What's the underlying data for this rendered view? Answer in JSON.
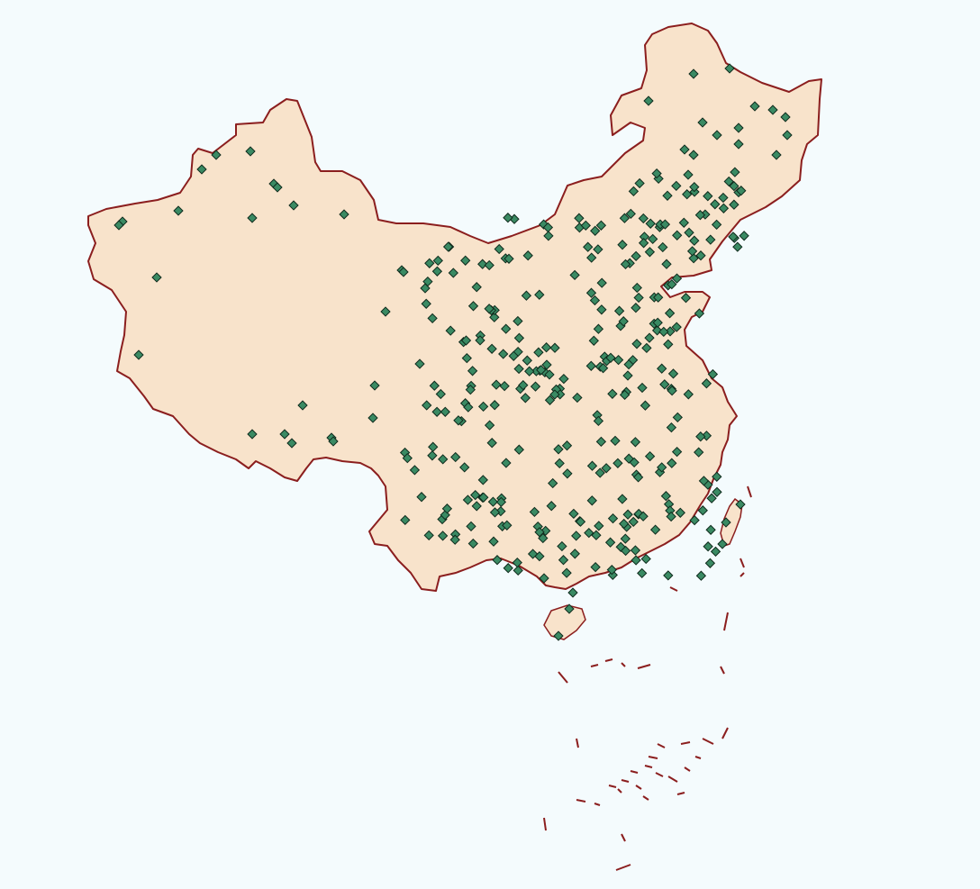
{
  "map": {
    "background_color": "#f4fbfd",
    "land_fill": "#f8e3cb",
    "border_color": "#8b1e1e",
    "marker_fill": "#3a8a63",
    "marker_stroke": "#0f2a1c",
    "marker_shape": "diamond",
    "marker_count": 330,
    "layers": [
      "country-outline",
      "island-islets",
      "point-markers"
    ]
  }
}
